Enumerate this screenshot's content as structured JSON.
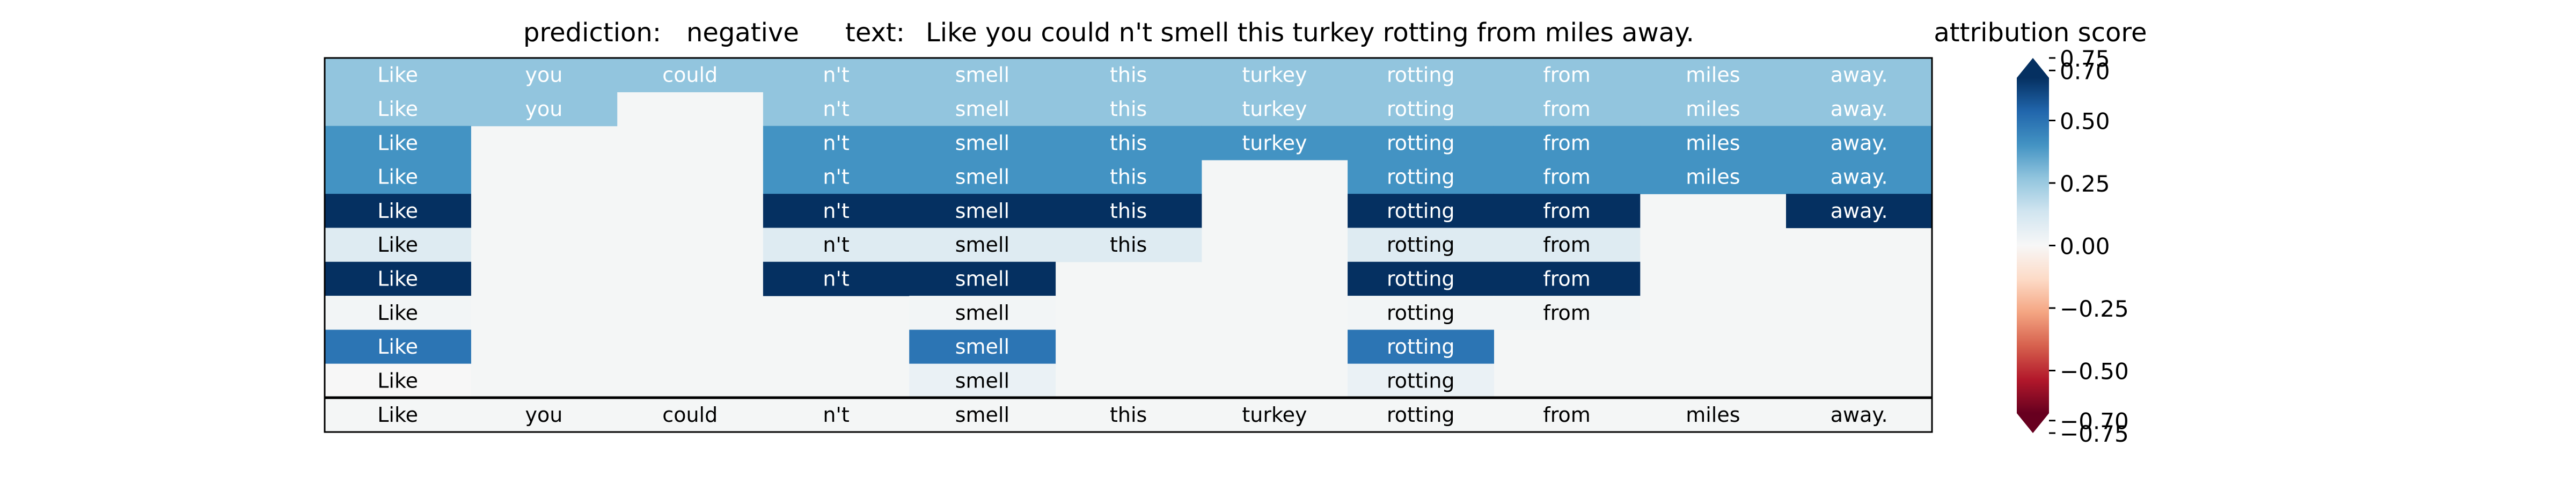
{
  "chart_data": {
    "type": "heatmap",
    "header": {
      "prediction_label": "prediction:",
      "prediction_value": "negative",
      "text_label": "text:",
      "text_value": "Like you could n't smell this turkey rotting from miles away."
    },
    "colorbar": {
      "title": "attribution score",
      "ticks": [
        0.75,
        0.5,
        0.25,
        0.0,
        -0.25,
        -0.5,
        -0.75
      ],
      "tick_labels": [
        "0.75",
        "0.50",
        "0.25",
        "0.00",
        "−0.25",
        "−0.50",
        "−0.75"
      ],
      "extra_ticks": [
        0.7,
        -0.7
      ],
      "extra_tick_labels": [
        "0.70",
        "−0.70"
      ],
      "range": [
        -0.75,
        0.75
      ],
      "extend": "both",
      "colormap": "RdBu"
    },
    "tokens": [
      "Like",
      "you",
      "could",
      "n't",
      "smell",
      "this",
      "turkey",
      "rotting",
      "from",
      "miles",
      "away."
    ],
    "rows": [
      [
        0.3,
        0.3,
        0.3,
        0.3,
        0.3,
        0.3,
        0.3,
        0.3,
        0.3,
        0.3,
        0.3
      ],
      [
        0.3,
        0.3,
        null,
        0.3,
        0.3,
        0.3,
        0.3,
        0.3,
        0.3,
        0.3,
        0.3
      ],
      [
        0.45,
        null,
        null,
        0.45,
        0.45,
        0.45,
        0.45,
        0.45,
        0.45,
        0.45,
        0.45
      ],
      [
        0.45,
        null,
        null,
        0.45,
        0.45,
        0.45,
        null,
        0.45,
        0.45,
        0.45,
        0.45
      ],
      [
        0.75,
        null,
        null,
        0.75,
        0.75,
        0.75,
        null,
        0.75,
        0.75,
        null,
        0.75
      ],
      [
        0.1,
        null,
        null,
        0.1,
        0.1,
        0.1,
        null,
        0.1,
        0.1,
        null,
        null
      ],
      [
        0.75,
        null,
        null,
        0.75,
        0.75,
        null,
        null,
        0.75,
        0.75,
        null,
        null
      ],
      [
        0.02,
        null,
        null,
        null,
        0.02,
        null,
        null,
        0.02,
        0.02,
        null,
        null
      ],
      [
        0.55,
        null,
        null,
        null,
        0.55,
        null,
        null,
        0.55,
        null,
        null,
        null
      ],
      [
        0.0,
        null,
        null,
        null,
        0.05,
        null,
        null,
        0.05,
        null,
        null,
        null
      ]
    ],
    "colors": {
      "empty_cell": "#f4f6f6",
      "border": "#000000",
      "text_dark": "#000000",
      "text_light": "#ffffff"
    }
  }
}
